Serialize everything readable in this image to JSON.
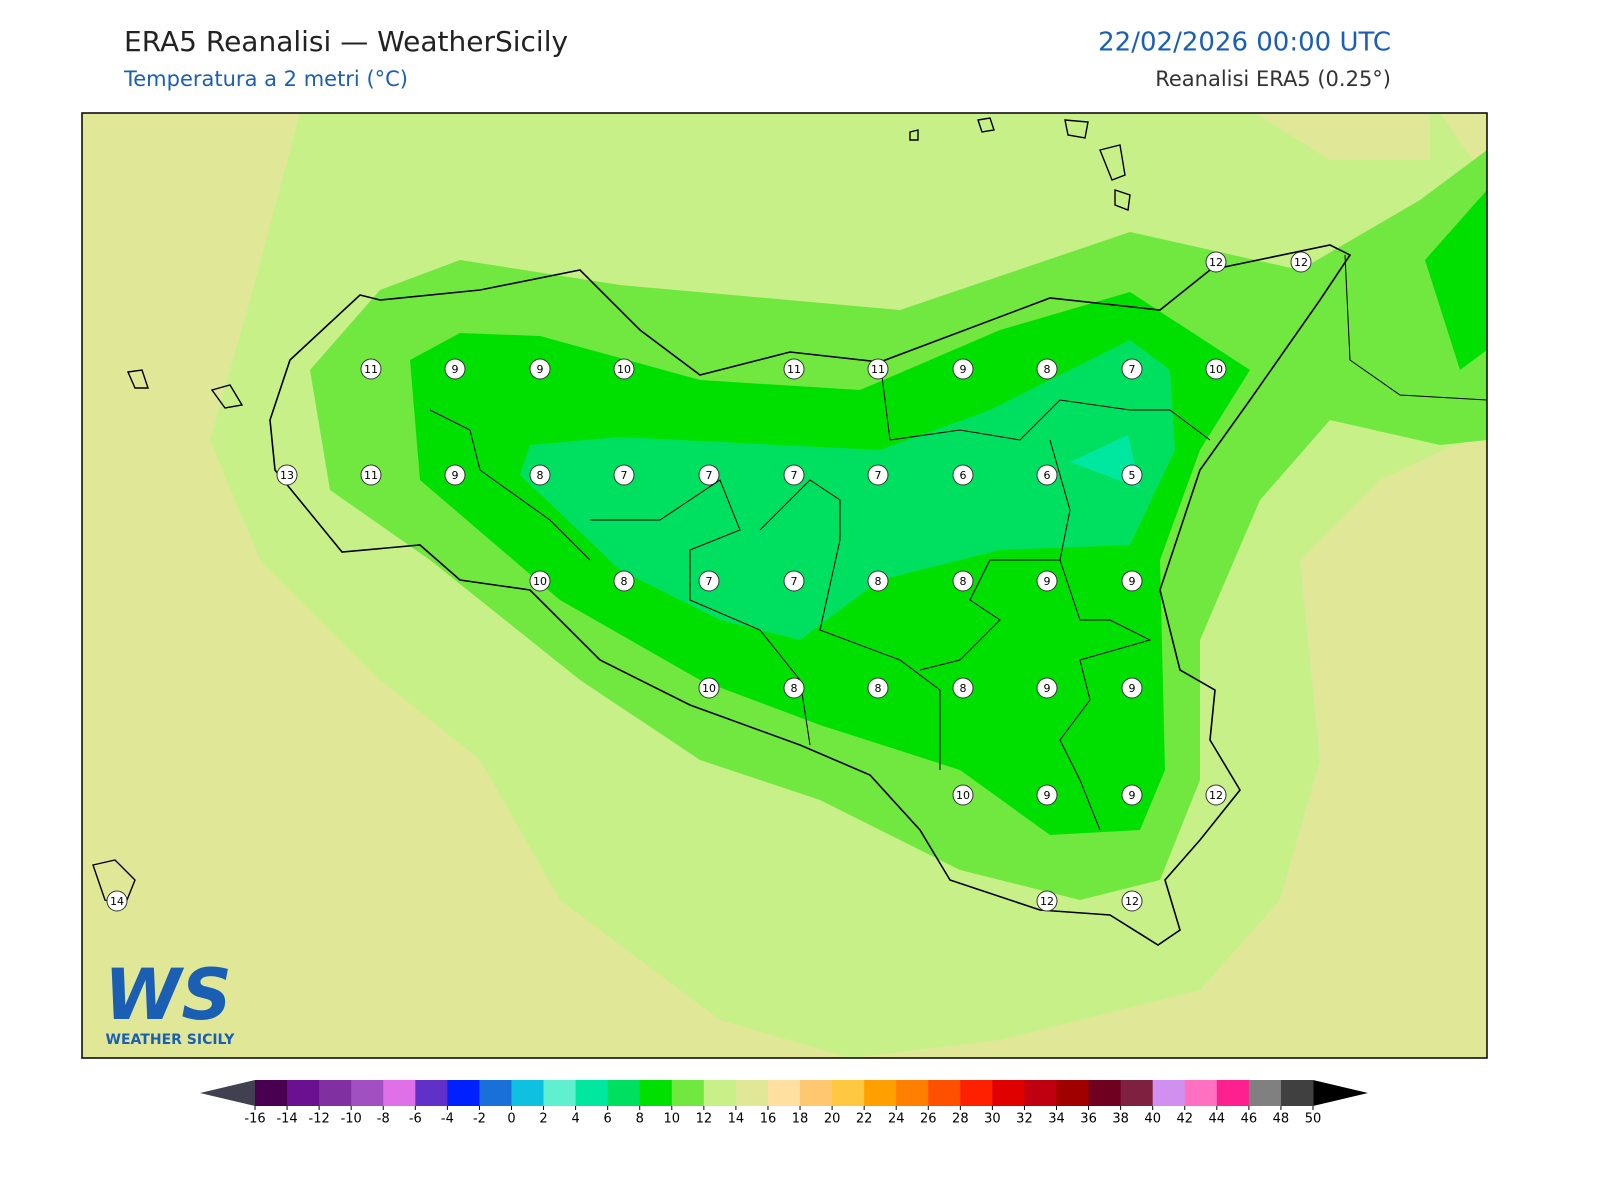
{
  "header": {
    "title": "ERA5 Reanalisi — WeatherSicily",
    "subtitle": "Temperatura a 2 metri (°C)",
    "datetime": "22/02/2026 00:00 UTC",
    "source": "Reanalisi ERA5 (0.25°)"
  },
  "map": {
    "values": [
      11,
      9,
      9,
      10,
      11,
      11,
      9,
      8,
      7,
      10,
      12,
      12,
      13,
      11,
      9,
      8,
      7,
      7,
      7,
      7,
      6,
      6,
      5,
      10,
      8,
      7,
      7,
      8,
      8,
      9,
      9,
      10,
      8,
      8,
      8,
      9,
      9,
      10,
      9,
      9,
      12,
      14,
      12,
      12
    ]
  },
  "logo": {
    "mark": "WS",
    "name": "WEATHER SICILY"
  },
  "colorbar": {
    "ticks": [
      -16,
      -14,
      -12,
      -10,
      -8,
      -6,
      -4,
      -2,
      0,
      2,
      4,
      6,
      8,
      10,
      12,
      14,
      16,
      18,
      20,
      22,
      24,
      26,
      28,
      30,
      32,
      34,
      36,
      38,
      40,
      42,
      44,
      46,
      48,
      50
    ],
    "colors": [
      "#4a0050",
      "#6a1090",
      "#8030a0",
      "#a050c0",
      "#e070e8",
      "#6030c8",
      "#0020ff",
      "#1870d8",
      "#10c0e0",
      "#60f0d0",
      "#00e8a0",
      "#00e060",
      "#00e000",
      "#70e840",
      "#c8f088",
      "#e0e898",
      "#ffe0a0",
      "#ffc870",
      "#ffc840",
      "#ffa000",
      "#ff8000",
      "#ff5000",
      "#ff2000",
      "#e00000",
      "#c00010",
      "#a00000",
      "#700020",
      "#802040",
      "#d090f0",
      "#ff70c0",
      "#ff2090",
      "#808080",
      "#404040"
    ],
    "under_color": "#404050",
    "over_color": "#000000"
  }
}
